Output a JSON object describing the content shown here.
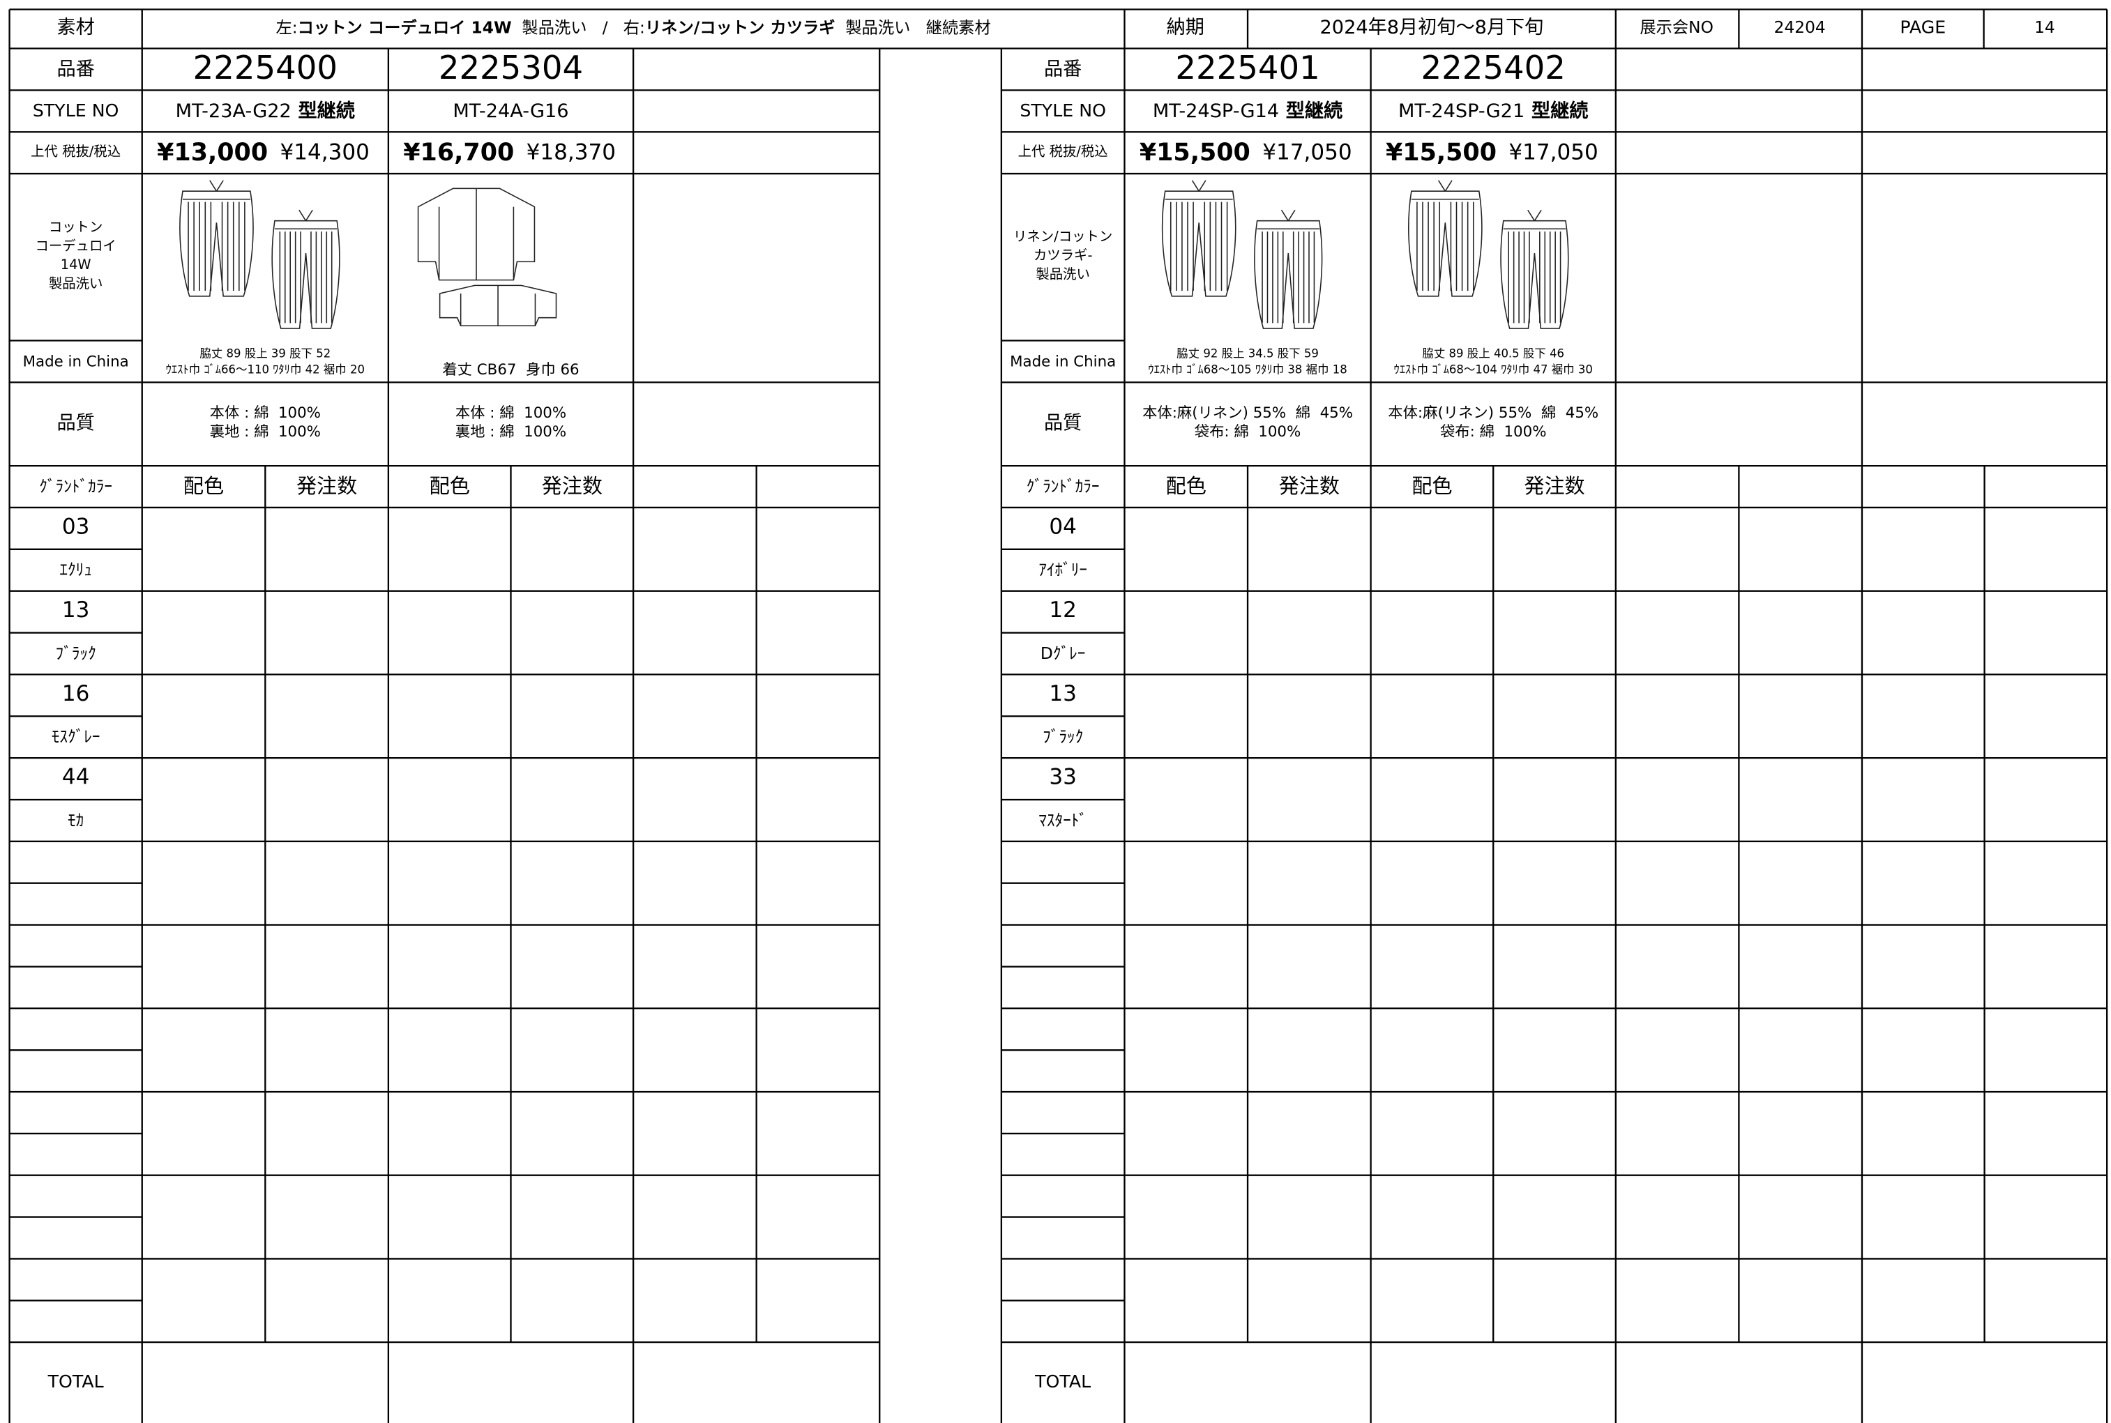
{
  "header": {
    "material_label": "素材",
    "material_text": [
      {
        "text": "左:",
        "bold": false
      },
      {
        "text": "コットン コーデュロイ 14W",
        "bold": true
      },
      {
        "text": "  製品洗い   /   右:",
        "bold": false
      },
      {
        "text": "リネン/コットン カツラギ",
        "bold": true
      },
      {
        "text": "  製品洗い   継続素材",
        "bold": false
      }
    ],
    "delivery_label": "納期",
    "delivery": "2024年8月初旬～8月下旬",
    "exhibition_label": "展示会NO",
    "exhibition_no": "24204",
    "page_label": "PAGE",
    "page": "14"
  },
  "panels": [
    {
      "labels": {
        "code": "品番",
        "style": "STYLE NO",
        "price": "上代 税抜/税込",
        "material": [
          "コットン",
          "コーデュロイ",
          "14W",
          "製品洗い"
        ],
        "origin": "Made in China",
        "quality": "品質",
        "color": "ｸﾞﾗﾝﾄﾞｶﾗｰ",
        "total": "TOTAL"
      },
      "column_headers": [
        "配色",
        "発注数"
      ],
      "products": [
        {
          "code": "2225400",
          "style": "MT-23A-G22",
          "style_note": "型継続",
          "price_ex": "¥13,000",
          "price_in": "¥14,300",
          "measurements": [
            "脇丈 89 股上 39 股下 52",
            "ｳｴｽﾄ巾 ｺﾞﾑ66～110 ﾜﾀﾘ巾 42 裾巾 20"
          ],
          "quality": [
            "本体 : 綿  100%",
            "裏地 : 綿  100%"
          ]
        },
        {
          "code": "2225304",
          "style": "MT-24A-G16",
          "price_ex": "¥16,700",
          "price_in": "¥18,370",
          "measurements": [
            "着丈 CB67  身巾 66"
          ],
          "quality": [
            "本体 : 綿  100%",
            "裏地 : 綿  100%"
          ]
        }
      ],
      "colors": [
        {
          "code": "03",
          "name": "ｴｸﾘｭ"
        },
        {
          "code": "13",
          "name": "ﾌﾞﾗｯｸ"
        },
        {
          "code": "16",
          "name": "ﾓｽｸﾞﾚｰ"
        },
        {
          "code": "44",
          "name": "ﾓｶ"
        }
      ]
    },
    {
      "labels": {
        "code": "品番",
        "style": "STYLE NO",
        "price": "上代 税抜/税込",
        "material": [
          "リネン/コットン",
          "カツラギ-",
          "製品洗い"
        ],
        "origin": "Made in China",
        "quality": "品質",
        "color": "ｸﾞﾗﾝﾄﾞｶﾗｰ",
        "total": "TOTAL"
      },
      "column_headers": [
        "配色",
        "発注数"
      ],
      "products": [
        {
          "code": "2225401",
          "style": "MT-24SP-G14",
          "style_note": "型継続",
          "price_ex": "¥15,500",
          "price_in": "¥17,050",
          "measurements": [
            "脇丈 92 股上 34.5 股下 59",
            "ｳｴｽﾄ巾 ｺﾞﾑ68～105 ﾜﾀﾘ巾 38 裾巾 18"
          ],
          "quality": [
            "本体:麻(リネン) 55%  綿  45%",
            "袋布: 綿  100%"
          ]
        },
        {
          "code": "2225402",
          "style": "MT-24SP-G21",
          "style_note": "型継続",
          "price_ex": "¥15,500",
          "price_in": "¥17,050",
          "measurements": [
            "脇丈 89 股上 40.5 股下 46",
            "ｳｴｽﾄ巾 ｺﾞﾑ68～104 ﾜﾀﾘ巾 47 裾巾 30"
          ],
          "quality": [
            "本体:麻(リネン) 55%  綿  45%",
            "袋布: 綿  100%"
          ]
        }
      ],
      "colors": [
        {
          "code": "04",
          "name": "ｱｲﾎﾞﾘｰ"
        },
        {
          "code": "12",
          "name": "Dｸﾞﾚｰ"
        },
        {
          "code": "13",
          "name": "ﾌﾞﾗｯｸ"
        },
        {
          "code": "33",
          "name": "ﾏｽﾀｰﾄﾞ"
        }
      ]
    }
  ]
}
